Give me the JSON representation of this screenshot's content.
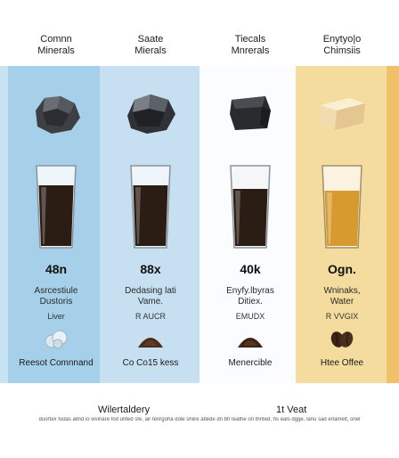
{
  "columns": [
    {
      "title": "Comnn\nMinerals",
      "value": "48n",
      "desc": "Asrcestiule\nDustoris",
      "sub": "Liver",
      "foot": "Reesot Comnnand"
    },
    {
      "title": "Saate\nMierals",
      "value": "88x",
      "desc": "Dedasing lati\nVame.",
      "sub": "R AUCR",
      "foot": "Co Co15 kess"
    },
    {
      "title": "Tiecals\nMnrerals",
      "value": "40k",
      "desc": "Enyfy.lbyras\nDitiex.",
      "sub": "EMUDX",
      "foot": "Menercible"
    },
    {
      "title": "Enytyo|o\nChimsiis",
      "value": "Ogn.",
      "desc": "Wninaks,\nWater",
      "sub": "R VVGIX",
      "foot": "Htee Offee"
    }
  ],
  "footer": {
    "left": "Wilertaldery",
    "right": "1t Veat",
    "note": "duortex fodas allnd io wvinare fod unted sfe, air tenrgoha dole shiire atlede dn bh teathe on thnted, hs eals dgge, lanu sad erlamelt, onel"
  },
  "colors": {
    "col1_band": "#a6d0ea",
    "col2_band": "#c6e0f1",
    "col3_band": "#fbfcfd",
    "col4_band": "#f4dc9e",
    "dark_liquid": "#2b1c14",
    "amber_liquid": "#d69a2e"
  },
  "icons": [
    "rock-icon",
    "glass-icon",
    "ice-cluster-icon",
    "grounds-pile-icon",
    "coffee-beans-icon"
  ]
}
